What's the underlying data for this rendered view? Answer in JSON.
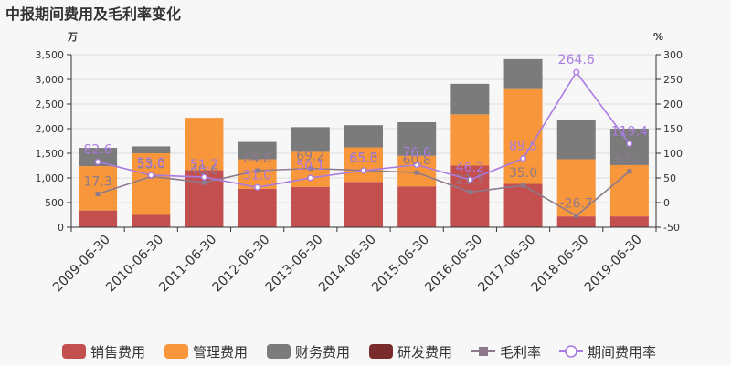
{
  "chart_data": {
    "type": "bar",
    "title": "中报期间费用及毛利率变化",
    "left_unit": "万",
    "right_unit": "%",
    "categories": [
      "2009-06-30",
      "2010-06-30",
      "2011-06-30",
      "2012-06-30",
      "2013-06-30",
      "2014-06-30",
      "2015-06-30",
      "2016-06-30",
      "2017-06-30",
      "2018-06-30",
      "2019-06-30"
    ],
    "left_axis": {
      "min": 0,
      "max": 3500,
      "ticks": [
        "0",
        "500",
        "1,000",
        "1,500",
        "2,000",
        "2,500",
        "3,000",
        "3,500"
      ]
    },
    "right_axis": {
      "min": -50,
      "max": 300,
      "ticks": [
        "-50",
        "0",
        "50",
        "100",
        "150",
        "200",
        "250",
        "300"
      ]
    },
    "grid": true,
    "legend_position": "bottom",
    "bar_series": [
      {
        "name": "销售费用",
        "color": "#c3504f",
        "values": [
          340,
          250,
          1160,
          780,
          820,
          920,
          830,
          1250,
          880,
          220,
          220
        ]
      },
      {
        "name": "管理费用",
        "color": "#f8963c",
        "values": [
          900,
          1250,
          1060,
          600,
          710,
          700,
          620,
          1040,
          1940,
          1160,
          1040
        ]
      },
      {
        "name": "财务费用",
        "color": "#7b7b7b",
        "values": [
          370,
          140,
          0,
          350,
          500,
          450,
          680,
          620,
          590,
          790,
          740
        ]
      },
      {
        "name": "研发费用",
        "color": "#7a2b2b",
        "values": [
          0,
          0,
          0,
          0,
          0,
          0,
          0,
          0,
          0,
          0,
          0
        ]
      }
    ],
    "line_series": [
      {
        "name": "毛利率",
        "color": "#8c7a8c",
        "marker": "square",
        "values": [
          17.3,
          53.0,
          40.6,
          64.8,
          69.2,
          65.3,
          60.8,
          21.3,
          35.0,
          -26.7,
          63.4
        ],
        "labels": [
          "17.3",
          "53.0",
          "40.6",
          "64.8",
          "69.2",
          "65.3",
          "60.8",
          "21.3",
          "35.0",
          "-26.7",
          "63.4"
        ]
      },
      {
        "name": "期间费用率",
        "color": "#a97be0",
        "marker": "circle",
        "values": [
          82.6,
          55.6,
          51.7,
          31.0,
          50.1,
          65.0,
          76.6,
          46.2,
          89.5,
          264.6,
          119.4
        ],
        "labels": [
          "82.6",
          "55.6",
          "51.7",
          "31.0",
          "50.1",
          "65.0",
          "76.6",
          "46.2",
          "89.5",
          "264.6",
          "119.4"
        ]
      }
    ]
  }
}
